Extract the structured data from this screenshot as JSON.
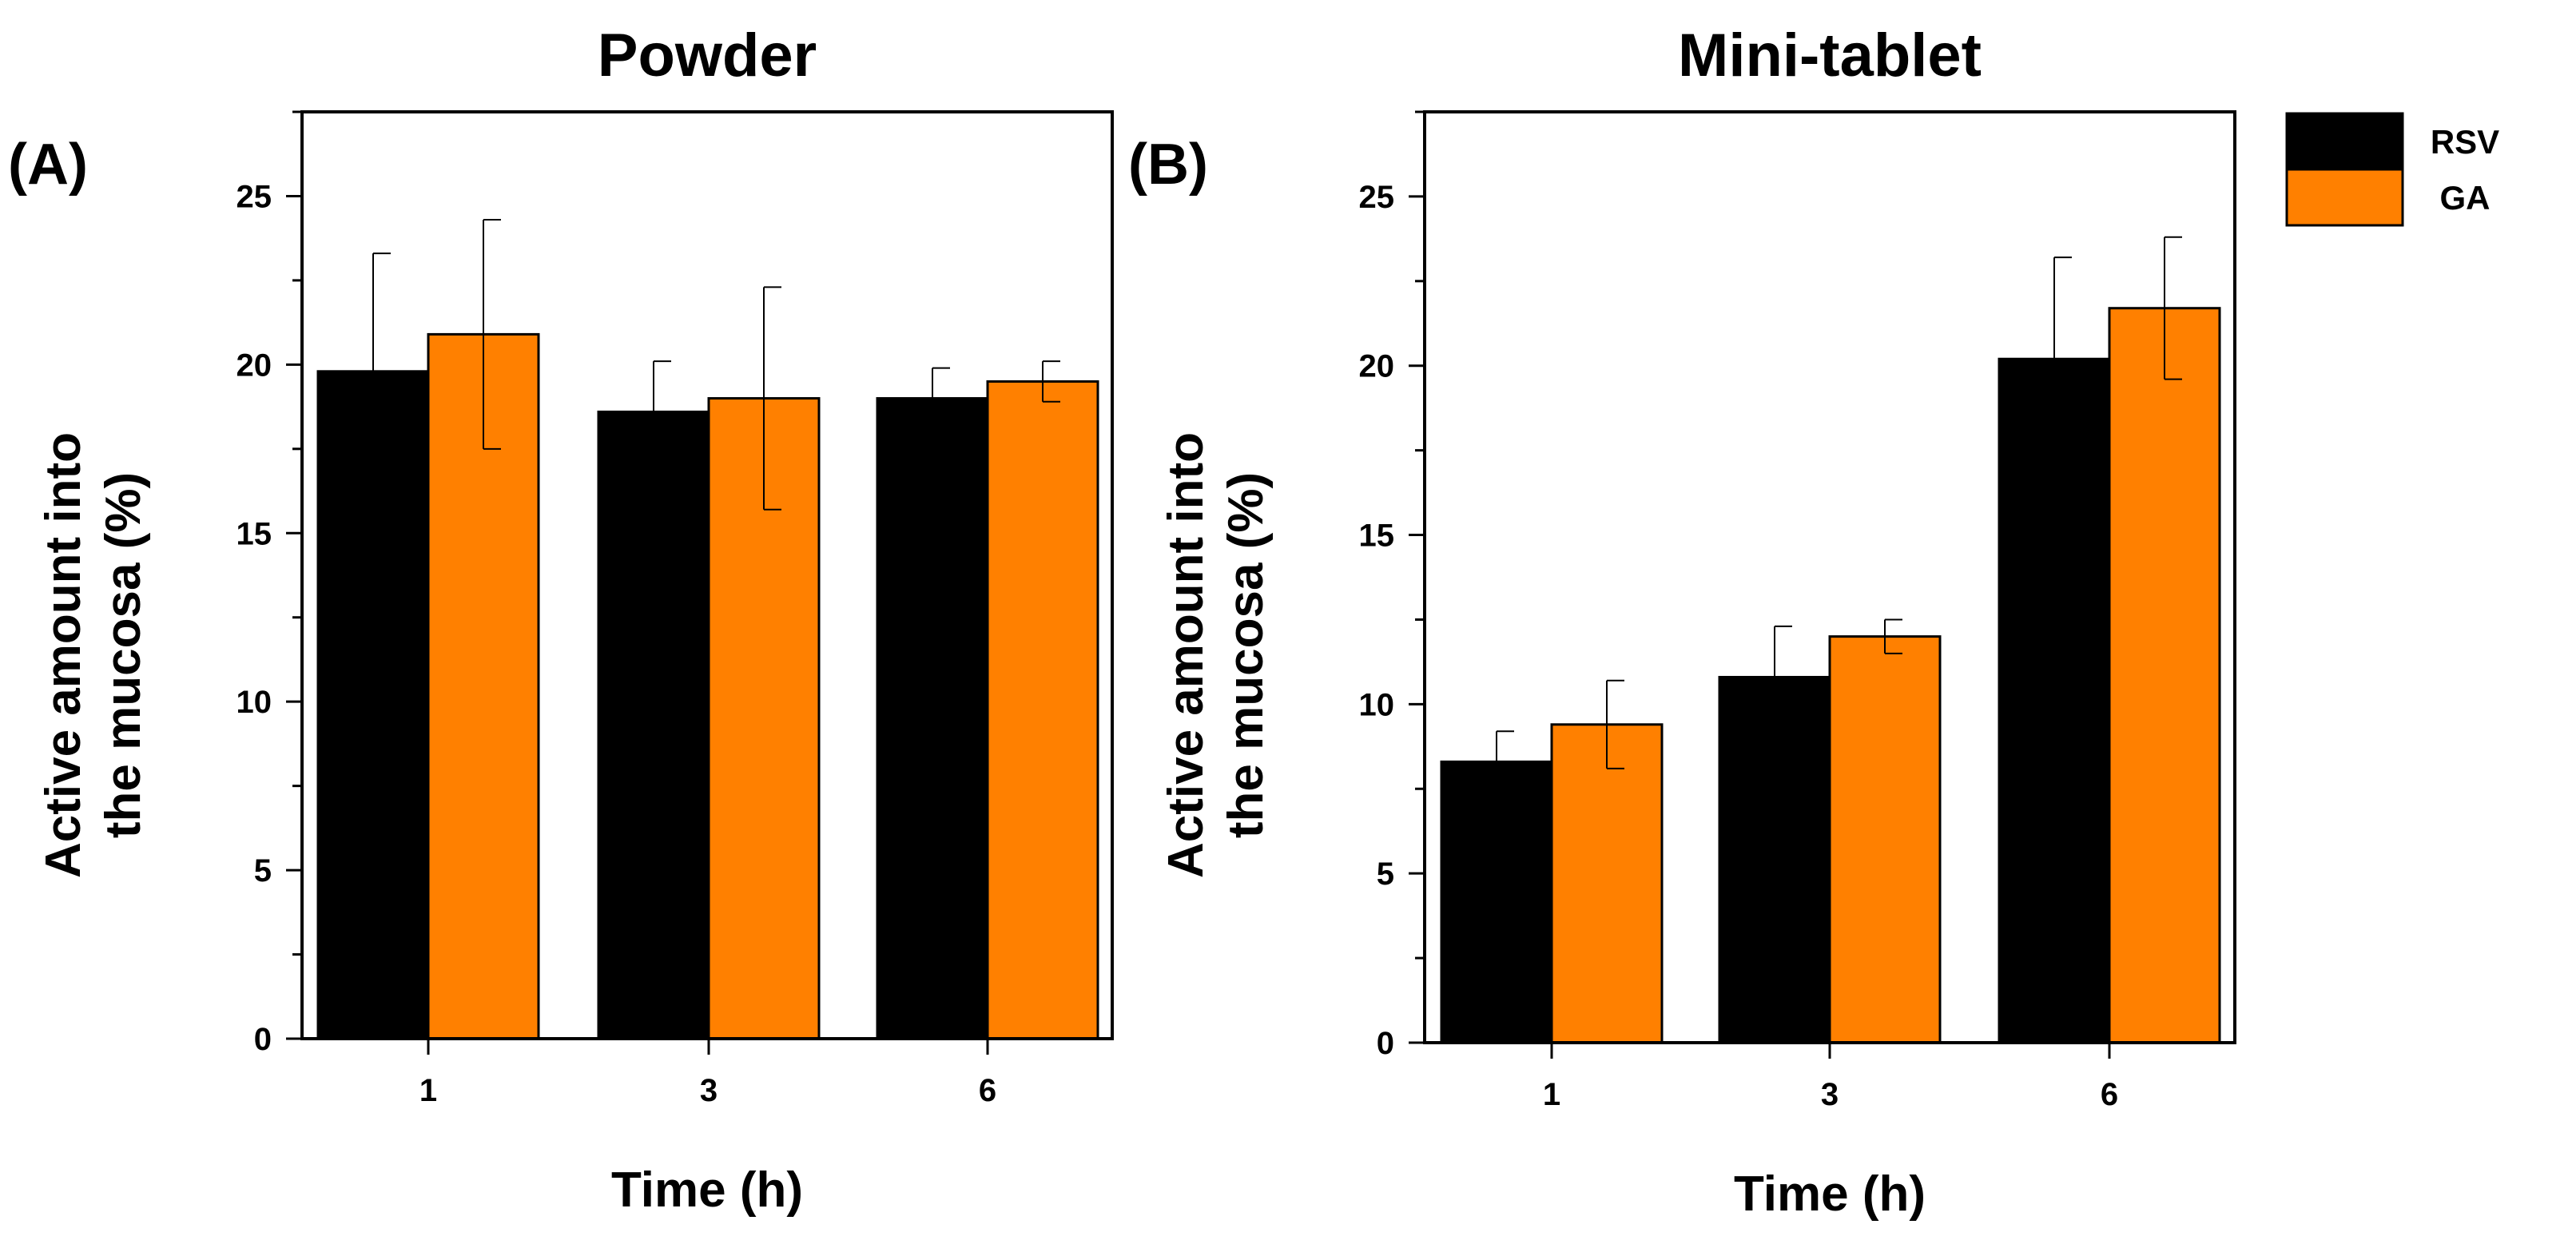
{
  "colors": {
    "rsv": "#000000",
    "ga": "#ff8000",
    "axis": "#000000"
  },
  "legend": [
    {
      "name": "RSV",
      "color": "#000000"
    },
    {
      "name": "GA",
      "color": "#ff8000"
    }
  ],
  "chart_data": [
    {
      "type": "bar",
      "panel_label": "(A)",
      "title": "Powder",
      "xlabel": "Time (h)",
      "ylabel_line1": "Active amount into",
      "ylabel_line2": "the mucosa (%)",
      "ylim": [
        0,
        27.5
      ],
      "yticks": [
        0,
        5,
        10,
        15,
        20,
        25
      ],
      "categories": [
        "1",
        "3",
        "6"
      ],
      "series": [
        {
          "name": "RSV",
          "values": [
            19.8,
            18.6,
            19.0
          ],
          "errors": [
            3.5,
            1.5,
            0.9
          ]
        },
        {
          "name": "GA",
          "values": [
            20.9,
            19.0,
            19.5
          ],
          "errors": [
            3.4,
            3.3,
            0.6
          ]
        }
      ]
    },
    {
      "type": "bar",
      "panel_label": "(B)",
      "title": "Mini-tablet",
      "xlabel": "Time (h)",
      "ylabel_line1": "Active amount into",
      "ylabel_line2": "the mucosa (%)",
      "ylim": [
        0,
        27.5
      ],
      "yticks": [
        0,
        5,
        10,
        15,
        20,
        25
      ],
      "categories": [
        "1",
        "3",
        "6"
      ],
      "series": [
        {
          "name": "RSV",
          "values": [
            8.3,
            10.8,
            20.2
          ],
          "errors": [
            0.9,
            1.5,
            3.0
          ]
        },
        {
          "name": "GA",
          "values": [
            9.4,
            12.0,
            21.7
          ],
          "errors": [
            1.3,
            0.5,
            2.1
          ]
        }
      ],
      "legend_position": "top-right outside"
    }
  ]
}
